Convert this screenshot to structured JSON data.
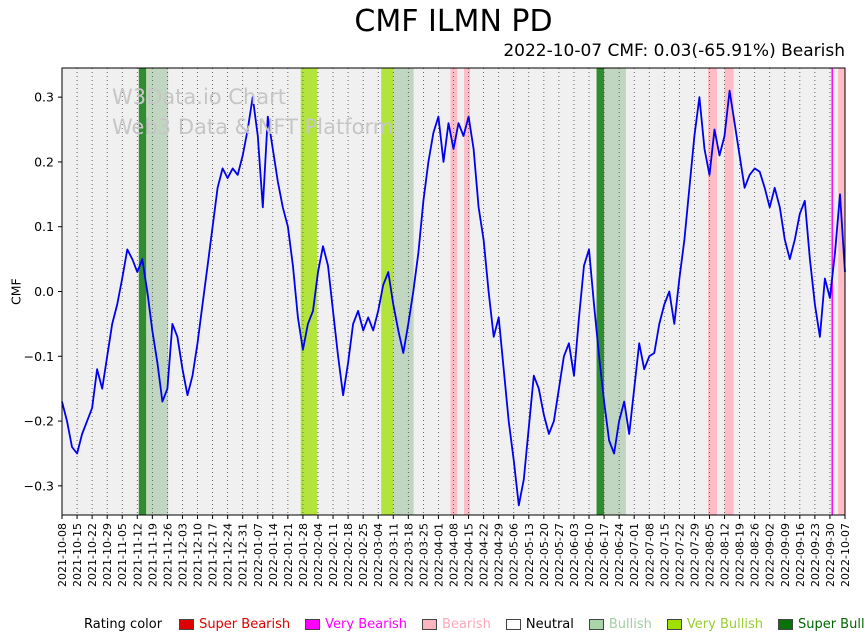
{
  "title": "CMF ILMN PD",
  "subtitle": "2022-10-07 CMF: 0.03(-65.91%) Bearish",
  "watermark": {
    "line1": "W3Data.io Chart",
    "line2": "Web3 Data & NFT Platform"
  },
  "ylabel": "CMF",
  "legend": {
    "label": "Rating color",
    "items": [
      {
        "label": "Super Bearish",
        "color": "#dd0000",
        "text_color": "#dd0000"
      },
      {
        "label": "Very Bearish",
        "color": "#ff00ff",
        "text_color": "#ff00ff"
      },
      {
        "label": "Bearish",
        "color": "#ffb6c1",
        "text_color": "#ffa8b8"
      },
      {
        "label": "Neutral",
        "color": "#ffffff",
        "text_color": "#000000"
      },
      {
        "label": "Bullish",
        "color": "#aad4aa",
        "text_color": "#a3cda3"
      },
      {
        "label": "Very Bullish",
        "color": "#9fe000",
        "text_color": "#9acd32"
      },
      {
        "label": "Super Bullish",
        "color": "#0a720a",
        "text_color": "#006400"
      }
    ]
  },
  "chart_data": {
    "type": "line",
    "title": "CMF ILMN PD",
    "xlabel": "",
    "ylabel": "CMF",
    "ylim": [
      -0.345,
      0.345
    ],
    "yticks": [
      0.3,
      0.2,
      0.1,
      0.0,
      -0.1,
      -0.2,
      -0.3
    ],
    "grid": "vertical-dotted",
    "legend_position": "bottom",
    "line_color": "#0000ee",
    "plot_bg": "#f0f0f0",
    "x_tick_labels": [
      "2021-10-08",
      "2021-10-15",
      "2021-10-22",
      "2021-10-29",
      "2021-11-05",
      "2021-11-12",
      "2021-11-19",
      "2021-11-26",
      "2021-12-03",
      "2021-12-10",
      "2021-12-17",
      "2021-12-24",
      "2021-12-31",
      "2022-01-07",
      "2022-01-14",
      "2022-01-21",
      "2022-01-28",
      "2022-02-04",
      "2022-02-11",
      "2022-02-18",
      "2022-02-25",
      "2022-03-04",
      "2022-03-11",
      "2022-03-18",
      "2022-03-25",
      "2022-04-01",
      "2022-04-08",
      "2022-04-15",
      "2022-04-22",
      "2022-04-29",
      "2022-05-06",
      "2022-05-13",
      "2022-05-20",
      "2022-05-27",
      "2022-06-03",
      "2022-06-10",
      "2022-06-17",
      "2022-06-24",
      "2022-07-01",
      "2022-07-08",
      "2022-07-15",
      "2022-07-22",
      "2022-07-29",
      "2022-08-05",
      "2022-08-12",
      "2022-08-19",
      "2022-08-26",
      "2022-09-02",
      "2022-09-09",
      "2022-09-16",
      "2022-09-23",
      "2022-09-30",
      "2022-10-07"
    ],
    "points_per_week": 3,
    "values": [
      -0.17,
      -0.2,
      -0.24,
      -0.25,
      -0.22,
      -0.2,
      -0.18,
      -0.12,
      -0.15,
      -0.1,
      -0.05,
      -0.02,
      0.02,
      0.065,
      0.05,
      0.03,
      0.05,
      0,
      -0.06,
      -0.11,
      -0.17,
      -0.15,
      -0.05,
      -0.07,
      -0.12,
      -0.16,
      -0.13,
      -0.08,
      -0.02,
      0.04,
      0.1,
      0.16,
      0.19,
      0.175,
      0.19,
      0.18,
      0.21,
      0.25,
      0.3,
      0.24,
      0.13,
      0.27,
      0.22,
      0.17,
      0.13,
      0.1,
      0.04,
      -0.04,
      -0.09,
      -0.05,
      -0.03,
      0.03,
      0.07,
      0.04,
      -0.03,
      -0.1,
      -0.16,
      -0.11,
      -0.05,
      -0.03,
      -0.06,
      -0.04,
      -0.06,
      -0.03,
      0.01,
      0.03,
      -0.02,
      -0.06,
      -0.095,
      -0.05,
      0,
      0.06,
      0.14,
      0.2,
      0.245,
      0.27,
      0.2,
      0.26,
      0.22,
      0.26,
      0.24,
      0.27,
      0.22,
      0.13,
      0.08,
      0,
      -0.07,
      -0.04,
      -0.12,
      -0.2,
      -0.26,
      -0.33,
      -0.29,
      -0.21,
      -0.13,
      -0.15,
      -0.19,
      -0.22,
      -0.2,
      -0.15,
      -0.1,
      -0.08,
      -0.13,
      -0.04,
      0.04,
      0.065,
      -0.02,
      -0.1,
      -0.17,
      -0.23,
      -0.25,
      -0.2,
      -0.17,
      -0.22,
      -0.15,
      -0.08,
      -0.12,
      -0.1,
      -0.095,
      -0.05,
      -0.02,
      0,
      -0.05,
      0.02,
      0.08,
      0.16,
      0.24,
      0.3,
      0.22,
      0.18,
      0.25,
      0.21,
      0.24,
      0.31,
      0.26,
      0.21,
      0.16,
      0.18,
      0.19,
      0.185,
      0.16,
      0.13,
      0.16,
      0.13,
      0.08,
      0.05,
      0.08,
      0.12,
      0.14,
      0.05,
      -0.02,
      -0.07,
      0.02,
      -0.01,
      0.06,
      0.15,
      0.03
    ],
    "bands": [
      {
        "from": 5.1,
        "to": 5.6,
        "rating": "Super Bullish",
        "color": "#0d7a0d",
        "opacity": 0.85
      },
      {
        "from": 5.65,
        "to": 7.05,
        "rating": "Bullish",
        "color": "#8fbc8f",
        "opacity": 0.5
      },
      {
        "from": 15.85,
        "to": 16.95,
        "rating": "Very Bullish",
        "color": "#9fe000",
        "opacity": 0.75
      },
      {
        "from": 21.2,
        "to": 22.0,
        "rating": "Very Bullish",
        "color": "#9fe000",
        "opacity": 0.75
      },
      {
        "from": 22.0,
        "to": 23.35,
        "rating": "Bullish",
        "color": "#8fbc8f",
        "opacity": 0.5
      },
      {
        "from": 25.8,
        "to": 26.25,
        "rating": "Bearish",
        "color": "#ffb6c1",
        "opacity": 0.9
      },
      {
        "from": 26.7,
        "to": 27.1,
        "rating": "Bearish",
        "color": "#ffb6c1",
        "opacity": 0.9
      },
      {
        "from": 35.5,
        "to": 36.0,
        "rating": "Super Bullish",
        "color": "#0d7a0d",
        "opacity": 0.85
      },
      {
        "from": 36.0,
        "to": 37.45,
        "rating": "Bullish",
        "color": "#8fbc8f",
        "opacity": 0.5
      },
      {
        "from": 42.9,
        "to": 43.5,
        "rating": "Bearish",
        "color": "#ffb6c1",
        "opacity": 0.9
      },
      {
        "from": 44.0,
        "to": 44.6,
        "rating": "Bearish",
        "color": "#ffb6c1",
        "opacity": 0.9
      },
      {
        "from": 51.55,
        "to": 52.0,
        "rating": "Bearish",
        "color": "#ffb6c1",
        "opacity": 0.9
      }
    ],
    "vlines": [
      {
        "at": 51.15,
        "rating": "Very Bearish",
        "color": "#ff00ff"
      }
    ]
  }
}
